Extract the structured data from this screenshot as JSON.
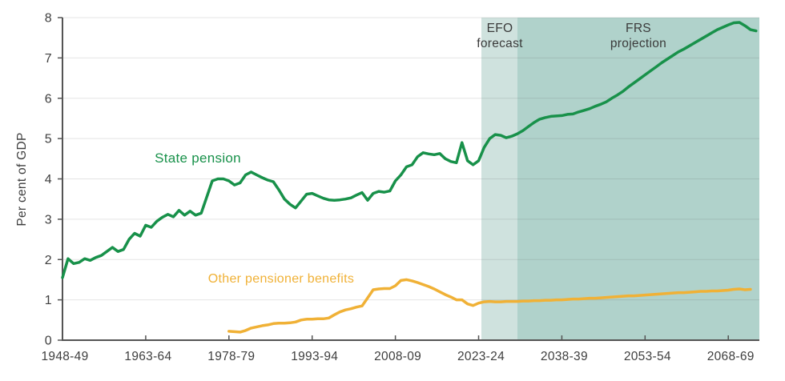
{
  "chart_data": {
    "type": "line",
    "title": "",
    "xlabel": "",
    "ylabel": "Per cent of GDP",
    "ylim": [
      0,
      8
    ],
    "xlim": [
      1948,
      2073.6
    ],
    "grid": "horizontal",
    "y_ticks": [
      "0",
      "1",
      "2",
      "3",
      "4",
      "5",
      "6",
      "7",
      "8"
    ],
    "x_ticks": [
      {
        "year": 1948,
        "label": "1948-49"
      },
      {
        "year": 1963,
        "label": "1963-64"
      },
      {
        "year": 1978,
        "label": "1978-79"
      },
      {
        "year": 1993,
        "label": "1993-94"
      },
      {
        "year": 2008,
        "label": "2008-09"
      },
      {
        "year": 2023,
        "label": "2023-24"
      },
      {
        "year": 2038,
        "label": "2038-39"
      },
      {
        "year": 2053,
        "label": "2053-54"
      },
      {
        "year": 2068,
        "label": "2068-69"
      }
    ],
    "regions": [
      {
        "name": "efo-forecast-band",
        "from": 2023.5,
        "to": 2030,
        "color": "#cfe2de",
        "label_top": "EFO",
        "label_bottom": "forecast"
      },
      {
        "name": "frs-projection-band",
        "from": 2030,
        "to": 2073.6,
        "color": "#b0d2cb",
        "label_top": "FRS",
        "label_bottom": "projection"
      }
    ],
    "series": [
      {
        "name": "State pension",
        "color": "#18914a",
        "start_year": 1948,
        "values": [
          1.55,
          2.02,
          1.9,
          1.93,
          2.02,
          1.98,
          2.05,
          2.1,
          2.2,
          2.3,
          2.2,
          2.25,
          2.5,
          2.65,
          2.58,
          2.85,
          2.8,
          2.95,
          3.05,
          3.12,
          3.06,
          3.22,
          3.1,
          3.2,
          3.1,
          3.15,
          3.55,
          3.95,
          4.0,
          4.0,
          3.95,
          3.85,
          3.9,
          4.1,
          4.17,
          4.1,
          4.03,
          3.97,
          3.93,
          3.73,
          3.5,
          3.37,
          3.28,
          3.45,
          3.62,
          3.64,
          3.58,
          3.52,
          3.48,
          3.47,
          3.48,
          3.5,
          3.53,
          3.6,
          3.66,
          3.47,
          3.64,
          3.69,
          3.67,
          3.7,
          3.95,
          4.1,
          4.3,
          4.35,
          4.55,
          4.65,
          4.62,
          4.6,
          4.63,
          4.5,
          4.43,
          4.4,
          4.9,
          4.45,
          4.35,
          4.45,
          4.78,
          5.0,
          5.1,
          5.08,
          5.02,
          5.06,
          5.12,
          5.2,
          5.3,
          5.4,
          5.48,
          5.52,
          5.55,
          5.56,
          5.57,
          5.6,
          5.61,
          5.66,
          5.7,
          5.74,
          5.8,
          5.85,
          5.91,
          6.0,
          6.08,
          6.17,
          6.28,
          6.38,
          6.48,
          6.58,
          6.68,
          6.78,
          6.88,
          6.97,
          7.06,
          7.15,
          7.22,
          7.3,
          7.38,
          7.46,
          7.54,
          7.62,
          7.7,
          7.76,
          7.82,
          7.87,
          7.88,
          7.8,
          7.7,
          7.67
        ]
      },
      {
        "name": "Other pensioner benefits",
        "color": "#f0b136",
        "start_year": 1978,
        "values": [
          0.22,
          0.21,
          0.2,
          0.24,
          0.3,
          0.33,
          0.36,
          0.38,
          0.41,
          0.42,
          0.42,
          0.43,
          0.45,
          0.5,
          0.52,
          0.52,
          0.53,
          0.53,
          0.55,
          0.63,
          0.7,
          0.75,
          0.78,
          0.82,
          0.85,
          1.05,
          1.25,
          1.27,
          1.28,
          1.28,
          1.35,
          1.48,
          1.5,
          1.47,
          1.43,
          1.38,
          1.33,
          1.27,
          1.2,
          1.13,
          1.07,
          1.0,
          1.0,
          0.9,
          0.86,
          0.92,
          0.95,
          0.96,
          0.95,
          0.95,
          0.96,
          0.96,
          0.96,
          0.97,
          0.97,
          0.98,
          0.98,
          0.99,
          0.99,
          1.0,
          1.0,
          1.01,
          1.02,
          1.02,
          1.03,
          1.04,
          1.04,
          1.05,
          1.06,
          1.07,
          1.08,
          1.09,
          1.1,
          1.1,
          1.11,
          1.12,
          1.13,
          1.14,
          1.15,
          1.16,
          1.17,
          1.18,
          1.18,
          1.19,
          1.2,
          1.21,
          1.21,
          1.22,
          1.22,
          1.23,
          1.24,
          1.26,
          1.27,
          1.25,
          1.26
        ]
      }
    ],
    "colors": {
      "axis": "#545454",
      "grid": "rgba(90,90,90,0.16)",
      "tick_text": "#3e3e3e"
    }
  }
}
